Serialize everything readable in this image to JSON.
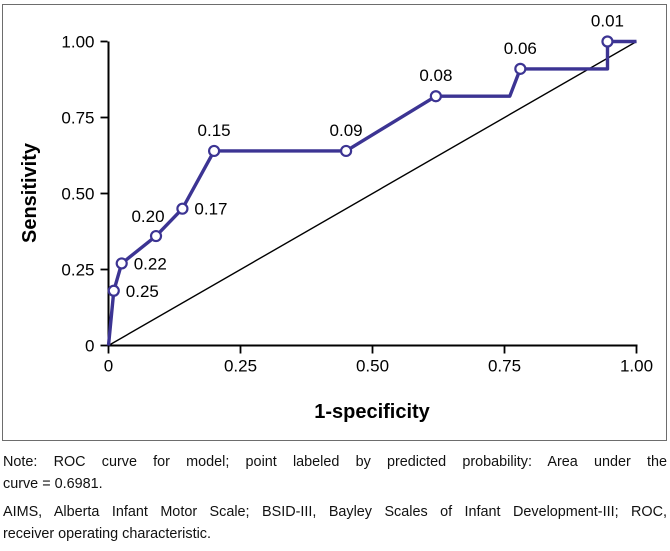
{
  "chart_data": {
    "type": "line",
    "title": "ROC curve for model; points labeled by predicted probability",
    "xlabel": "1-specificity",
    "ylabel": "Sensitivity",
    "xlim": [
      0,
      1
    ],
    "ylim": [
      0,
      1
    ],
    "grid": false,
    "legend": "none",
    "auc": 0.6981,
    "xticks": [
      {
        "value": 0,
        "label": "0"
      },
      {
        "value": 0.25,
        "label": "0.25"
      },
      {
        "value": 0.5,
        "label": "0.50"
      },
      {
        "value": 0.75,
        "label": "0.75"
      },
      {
        "value": 1,
        "label": "1.00"
      }
    ],
    "yticks": [
      {
        "value": 0,
        "label": "0"
      },
      {
        "value": 0.25,
        "label": "0.25"
      },
      {
        "value": 0.5,
        "label": "0.50"
      },
      {
        "value": 0.75,
        "label": "0.75"
      },
      {
        "value": 1,
        "label": "1.00"
      }
    ],
    "roc_curve": {
      "color": "#3c3493",
      "marker_fill": "#ffffff",
      "vertices": [
        {
          "x": 0,
          "y": 0,
          "marker": false
        },
        {
          "x": 0.01,
          "y": 0.18,
          "marker": true,
          "p_label": "0.25",
          "anchor": "right"
        },
        {
          "x": 0.025,
          "y": 0.27,
          "marker": true,
          "p_label": "0.22",
          "anchor": "right"
        },
        {
          "x": 0.09,
          "y": 0.36,
          "marker": true,
          "p_label": "0.20",
          "anchor": "above-left"
        },
        {
          "x": 0.14,
          "y": 0.45,
          "marker": true,
          "p_label": "0.17",
          "anchor": "right"
        },
        {
          "x": 0.2,
          "y": 0.64,
          "marker": true,
          "p_label": "0.15",
          "anchor": "above"
        },
        {
          "x": 0.45,
          "y": 0.64,
          "marker": true,
          "p_label": "0.09",
          "anchor": "above"
        },
        {
          "x": 0.62,
          "y": 0.82,
          "marker": true,
          "p_label": "0.08",
          "anchor": "above"
        },
        {
          "x": 0.76,
          "y": 0.82,
          "marker": false
        },
        {
          "x": 0.78,
          "y": 0.91,
          "marker": true,
          "p_label": "0.06",
          "anchor": "above"
        },
        {
          "x": 0.945,
          "y": 0.91,
          "marker": false
        },
        {
          "x": 0.945,
          "y": 1.0,
          "marker": true,
          "p_label": "0.01",
          "anchor": "above"
        },
        {
          "x": 1.0,
          "y": 1.0,
          "marker": false
        }
      ]
    },
    "reference_line": {
      "from": [
        0,
        0
      ],
      "to": [
        1,
        1
      ],
      "color": "#000000"
    }
  },
  "notes": {
    "note": [
      "Note: ROC curve for model; point labeled by predicted probability: Area under the",
      "curve = 0.6981."
    ],
    "abbreviations": [
      "AIMS, Alberta Infant Motor Scale; BSID-III, Bayley Scales of Infant Development-III; ROC,",
      "receiver operating characteristic."
    ]
  }
}
